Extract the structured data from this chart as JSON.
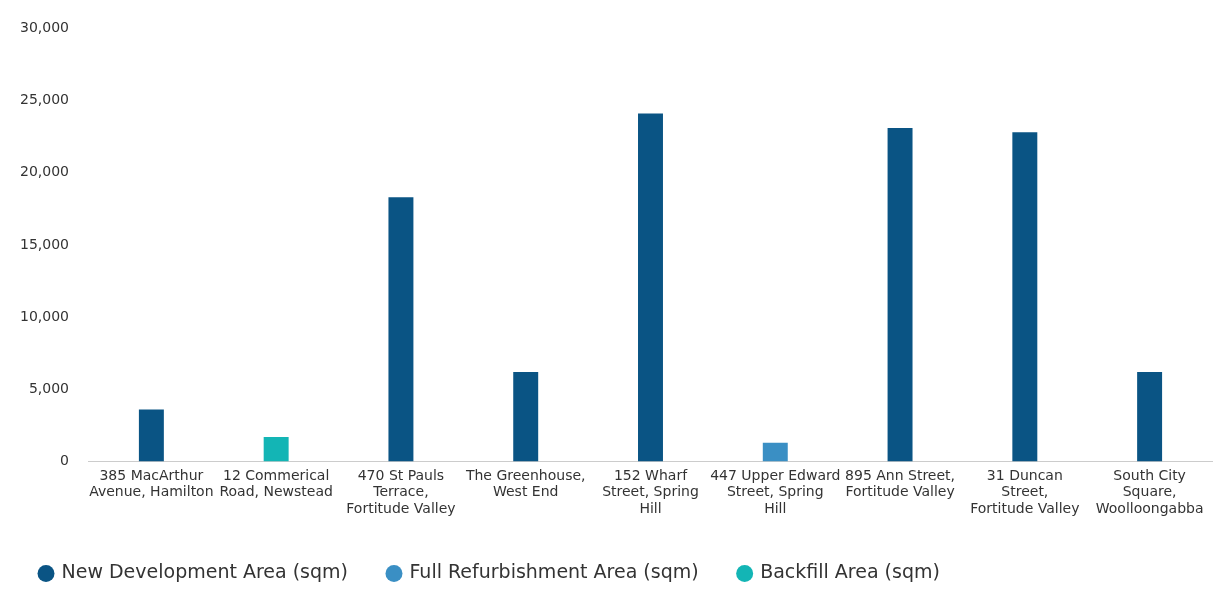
{
  "chart_data": {
    "type": "bar",
    "stacked": true,
    "categories": [
      "385 MacArthur Avenue, Hamilton",
      "12 Commerical Road, Newstead",
      "470 St Pauls Terrace, Fortitude Valley",
      "The Greenhouse, West End",
      "152 Wharf Street, Spring Hill",
      "447 Upper Edward Street, Spring Hill",
      "895 Ann Street, Fortitude Valley",
      "31 Duncan Street, Fortitude Valley",
      "South City Square, Woolloongabba"
    ],
    "series": [
      {
        "name": "New Development Area (sqm)",
        "color": "#0a5484",
        "values": [
          3600,
          null,
          18300,
          6200,
          24100,
          null,
          23100,
          22800,
          6200
        ]
      },
      {
        "name": "Full Refurbishment Area (sqm)",
        "color": "#3a8fc4",
        "values": [
          null,
          null,
          null,
          null,
          null,
          1300,
          null,
          null,
          null
        ]
      },
      {
        "name": "Backfill Area (sqm)",
        "color": "#13b5b5",
        "values": [
          null,
          1700,
          null,
          null,
          null,
          null,
          null,
          null,
          null
        ]
      }
    ],
    "ylim": [
      0,
      30000
    ],
    "yticks": [
      {
        "value": 0,
        "label": "0"
      },
      {
        "value": 5000,
        "label": "5,000"
      },
      {
        "value": 10000,
        "label": "10,000"
      },
      {
        "value": 15000,
        "label": "15,000"
      },
      {
        "value": 20000,
        "label": "20,000"
      },
      {
        "value": 25000,
        "label": "25,000"
      },
      {
        "value": 30000,
        "label": "30,000"
      }
    ],
    "grid": false,
    "legend": "bottom left"
  }
}
